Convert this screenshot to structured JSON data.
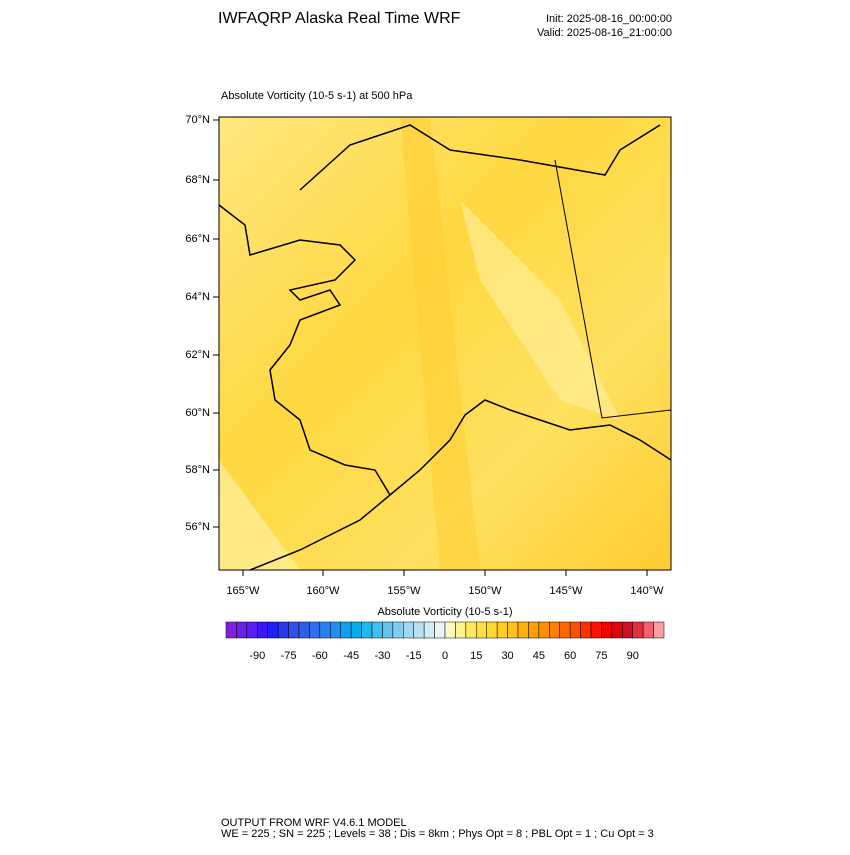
{
  "header": {
    "title": "IWFAQRP Alaska Real Time WRF",
    "init": "Init: 2025-08-16_00:00:00",
    "valid": "Valid: 2025-08-16_21:00:00"
  },
  "map": {
    "subtitle": "Absolute Vorticity   (10-5 s-1)     at   500 hPa",
    "lat_labels": [
      "70°N",
      "68°N",
      "66°N",
      "64°N",
      "62°N",
      "60°N",
      "58°N",
      "56°N"
    ],
    "lon_labels": [
      "165°W",
      "160°W",
      "155°W",
      "150°W",
      "145°W",
      "140°W"
    ]
  },
  "colorbar": {
    "label": "Absolute Vorticity  (10-5 s-1)",
    "range": [
      -105,
      105
    ],
    "ticks": [
      -90,
      -75,
      -60,
      -45,
      -30,
      -15,
      0,
      15,
      30,
      45,
      60,
      75,
      90
    ],
    "colors": [
      "#8020e0",
      "#6a1ee8",
      "#5a1ef0",
      "#3c14f5",
      "#2020ff",
      "#2838f0",
      "#3050e8",
      "#3060e8",
      "#3070f0",
      "#2a80f0",
      "#2090f0",
      "#10a0f0",
      "#00b0f0",
      "#20b8f0",
      "#40c0f0",
      "#60c4f0",
      "#80ccf0",
      "#a0d8f4",
      "#b8e0f0",
      "#d0ecf4",
      "#e8f4f8",
      "#fff8c0",
      "#fff090",
      "#ffe860",
      "#ffe040",
      "#ffd830",
      "#ffcc20",
      "#ffc020",
      "#ffb010",
      "#ffa000",
      "#ff9000",
      "#ff8000",
      "#ff6800",
      "#ff5000",
      "#ff3000",
      "#ff1000",
      "#f00000",
      "#e00010",
      "#d01020",
      "#e03040",
      "#f06070",
      "#f8a0a0"
    ]
  },
  "footer": {
    "line1": "OUTPUT FROM WRF V4.6.1 MODEL",
    "line2": "WE = 225 ; SN = 225 ; Levels = 38 ; Dis = 8km ; Phys Opt = 8 ; PBL Opt = 1 ; Cu Opt = 3"
  }
}
